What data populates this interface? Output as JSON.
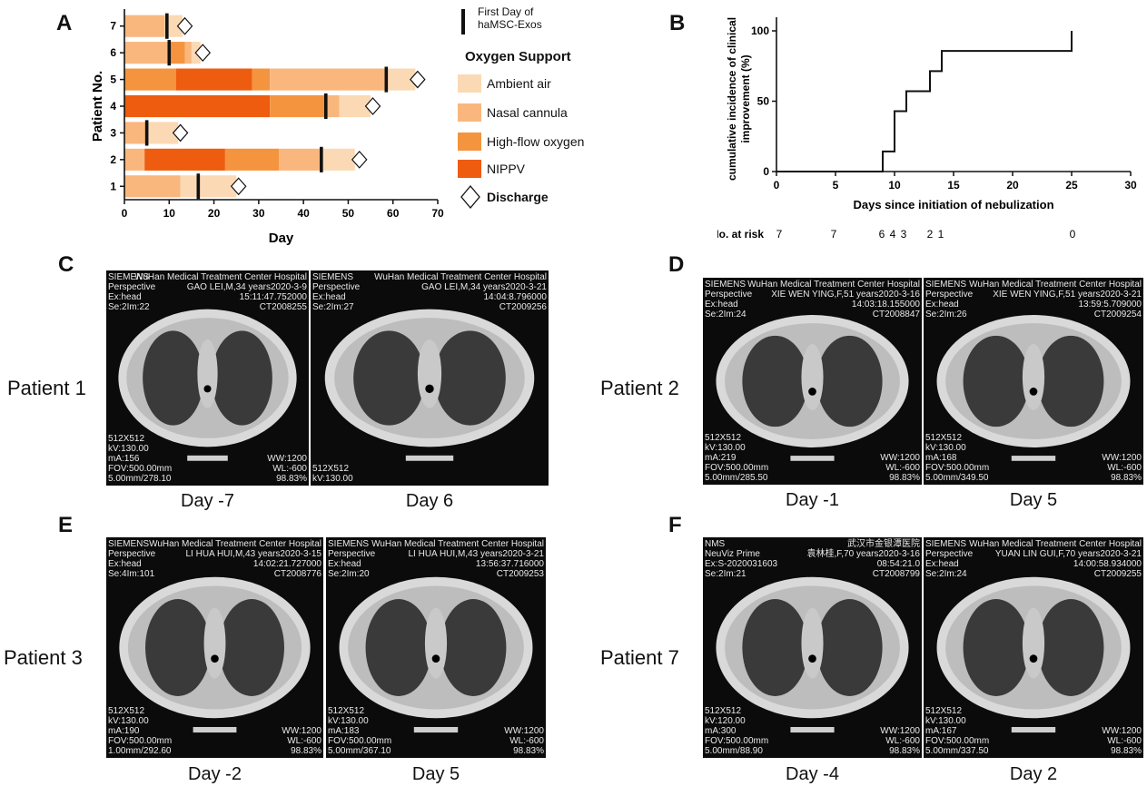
{
  "panel_labels": {
    "a": "A",
    "b": "B",
    "c": "C",
    "d": "D",
    "e": "E",
    "f": "F"
  },
  "chart_data": [
    {
      "type": "bar",
      "xlabel": "Day",
      "ylabel": "Patient No.",
      "xlim": [
        0,
        70
      ],
      "xticks": [
        "0",
        "10",
        "20",
        "30",
        "40",
        "50",
        "60",
        "70"
      ],
      "categories": [
        "1",
        "2",
        "3",
        "4",
        "5",
        "6",
        "7"
      ],
      "legend": {
        "marker_label": "First Day of\nhaMSC-Exos",
        "title": "Oxygen Support",
        "items": [
          "Ambient air",
          "Nasal cannula",
          "High-flow oxygen",
          "NIPPV"
        ],
        "discharge_label": "Discharge"
      },
      "colors": {
        "Ambient air": "#fbd9b4",
        "Nasal cannula": "#f9b77d",
        "High-flow oxygen": "#f5943f",
        "NIPPV": "#ee5c0f"
      },
      "patients": [
        {
          "id": "1",
          "segments": [
            {
              "type": "Nasal cannula",
              "start": 0,
              "end": 12.5
            },
            {
              "type": "Ambient air",
              "start": 12.5,
              "end": 25
            }
          ],
          "first_day": 16.5,
          "discharge": 25.5
        },
        {
          "id": "2",
          "segments": [
            {
              "type": "Nasal cannula",
              "start": 0,
              "end": 4.5
            },
            {
              "type": "NIPPV",
              "start": 4.5,
              "end": 22.5
            },
            {
              "type": "High-flow oxygen",
              "start": 22.5,
              "end": 34.5
            },
            {
              "type": "Nasal cannula",
              "start": 34.5,
              "end": 44
            },
            {
              "type": "Ambient air",
              "start": 44,
              "end": 51.5
            }
          ],
          "first_day": 44,
          "discharge": 52.5
        },
        {
          "id": "3",
          "segments": [
            {
              "type": "Nasal cannula",
              "start": 0,
              "end": 5
            },
            {
              "type": "Ambient air",
              "start": 5,
              "end": 12
            }
          ],
          "first_day": 5,
          "discharge": 12.5
        },
        {
          "id": "4",
          "segments": [
            {
              "type": "NIPPV",
              "start": 0,
              "end": 32.5
            },
            {
              "type": "High-flow oxygen",
              "start": 32.5,
              "end": 45
            },
            {
              "type": "Nasal cannula",
              "start": 45,
              "end": 48
            },
            {
              "type": "Ambient air",
              "start": 48,
              "end": 55
            }
          ],
          "first_day": 45,
          "discharge": 55.5
        },
        {
          "id": "5",
          "segments": [
            {
              "type": "High-flow oxygen",
              "start": 0,
              "end": 11.5
            },
            {
              "type": "NIPPV",
              "start": 11.5,
              "end": 28.5
            },
            {
              "type": "High-flow oxygen",
              "start": 28.5,
              "end": 32.5
            },
            {
              "type": "Nasal cannula",
              "start": 32.5,
              "end": 58.5
            },
            {
              "type": "Ambient air",
              "start": 58.5,
              "end": 65
            }
          ],
          "first_day": 58.5,
          "discharge": 65.5
        },
        {
          "id": "6",
          "segments": [
            {
              "type": "Nasal cannula",
              "start": 0,
              "end": 10
            },
            {
              "type": "High-flow oxygen",
              "start": 10,
              "end": 13.5
            },
            {
              "type": "Nasal cannula",
              "start": 13.5,
              "end": 15
            },
            {
              "type": "Ambient air",
              "start": 15,
              "end": 17
            }
          ],
          "first_day": 10,
          "discharge": 17.5
        },
        {
          "id": "7",
          "segments": [
            {
              "type": "Nasal cannula",
              "start": 0,
              "end": 9
            },
            {
              "type": "Ambient air",
              "start": 9,
              "end": 13
            }
          ],
          "first_day": 9.5,
          "discharge": 13.5
        }
      ]
    },
    {
      "type": "line",
      "xlabel": "Days since initiation of nebulization",
      "ylabel": "cumulative incidence of clinical\nimprovement (%)",
      "xlim": [
        0,
        30
      ],
      "ylim": [
        0,
        100
      ],
      "xticks": [
        "0",
        "5",
        "10",
        "15",
        "20",
        "25",
        "30"
      ],
      "yticks": [
        "0",
        "50",
        "100"
      ],
      "step_points": [
        [
          0,
          0
        ],
        [
          9,
          0
        ],
        [
          9,
          14.3
        ],
        [
          10,
          14.3
        ],
        [
          10,
          42.9
        ],
        [
          11,
          42.9
        ],
        [
          11,
          57.1
        ],
        [
          13,
          57.1
        ],
        [
          13,
          71.4
        ],
        [
          14,
          71.4
        ],
        [
          14,
          85.7
        ],
        [
          25,
          85.7
        ],
        [
          25,
          100
        ]
      ],
      "risk_label": "No. at risk",
      "risk_table": [
        {
          "x": 0,
          "label": "7"
        },
        {
          "x": 5,
          "label": "7"
        },
        {
          "x": 9,
          "label": "6"
        },
        {
          "x": 10,
          "label": "4"
        },
        {
          "x": 11,
          "label": "3"
        },
        {
          "x": 13,
          "label": "2"
        },
        {
          "x": 14,
          "label": "1"
        },
        {
          "x": 25,
          "label": "0"
        }
      ]
    }
  ],
  "ct_panels": {
    "c": {
      "patient": "Patient 1",
      "left": {
        "day": "Day -7",
        "tl": "SIEMENS\nPerspective\nEx:head\nSe:2Im:22",
        "tr": "WuHan Medical Treatment Center Hospital\nGAO LEI,M,34 years2020-3-9\n15:11:47.752000\nCT2008255",
        "bl": "512X512\nkV:130.00\nmA:156\nFOV:500.00mm\n5.00mm/278.10",
        "br": "WW:1200\nWL:-600\n98.83%"
      },
      "right": {
        "day": "Day 6",
        "tl": "SIEMENS\nPerspective\nEx:head\nSe:2Im:27",
        "tr": "WuHan Medical Treatment Center Hospital\nGAO LEI,M,34 years2020-3-21\n14:04:8.796000\nCT2009256",
        "bl": "512X512\nkV:130.00",
        "br": ""
      }
    },
    "d": {
      "patient": "Patient 2",
      "left": {
        "day": "Day -1",
        "tl": "SIEMENS\nPerspective\nEx:head\nSe:2Im:24",
        "tr": "WuHan Medical Treatment Center Hospital\nXIE WEN YING,F,51 years2020-3-16\n14:03:18.155000\nCT2008847",
        "bl": "512X512\nkV:130.00\nmA:219\nFOV:500.00mm\n5.00mm/285.50",
        "br": "WW:1200\nWL:-600\n98.83%"
      },
      "right": {
        "day": "Day 5",
        "tl": "SIEMENS\nPerspective\nEx:head\nSe:2Im:26",
        "tr": "WuHan Medical Treatment Center Hospital\nXIE WEN YING,F,51 years2020-3-21\n13:59:5.709000\nCT2009254",
        "bl": "512X512\nkV:130.00\nmA:168\nFOV:500.00mm\n5.00mm/349.50",
        "br": "WW:1200\nWL:-600\n98.83%"
      }
    },
    "e": {
      "patient": "Patient 3",
      "left": {
        "day": "Day -2",
        "tl": "SIEMENS\nPerspective\nEx:head\nSe:4Im:101",
        "tr": "WuHan Medical Treatment Center Hospital\nLI HUA HUI,M,43 years2020-3-15\n14:02:21.727000\nCT2008776",
        "bl": "512X512\nkV:130.00\nmA:190\nFOV:500.00mm\n1.00mm/292.60",
        "br": "WW:1200\nWL:-600\n98.83%"
      },
      "right": {
        "day": "Day 5",
        "tl": "SIEMENS\nPerspective\nEx:head\nSe:2Im:20",
        "tr": "WuHan Medical Treatment Center Hospital\nLI HUA HUI,M,43 years2020-3-21\n13:56:37.716000\nCT2009253",
        "bl": "512X512\nkV:130.00\nmA:183\nFOV:500.00mm\n5.00mm/367.10",
        "br": "WW:1200\nWL:-600\n98.83%"
      }
    },
    "f": {
      "patient": "Patient 7",
      "left": {
        "day": "Day -4",
        "tl": "NMS\nNeuViz Prime\nEx:S-2020031603\nSe:2Im:21",
        "tr": "武汉市金银潭医院\n袁林桂,F,70 years2020-3-16\n08:54:21.0\nCT2008799",
        "bl": "512X512\nkV:120.00\nmA:300\nFOV:500.00mm\n5.00mm/88.90",
        "br": "WW:1200\nWL:-600\n98.83%"
      },
      "right": {
        "day": "Day 2",
        "tl": "SIEMENS\nPerspective\nEx:head\nSe:2Im:24",
        "tr": "WuHan Medical Treatment Center Hospital\nYUAN LIN GUI,F,70 years2020-3-21\n14:00:58.934000\nCT2009255",
        "bl": "512X512\nkV:130.00\nmA:167\nFOV:500.00mm\n5.00mm/337.50",
        "br": "WW:1200\nWL:-600\n98.83%"
      }
    }
  }
}
